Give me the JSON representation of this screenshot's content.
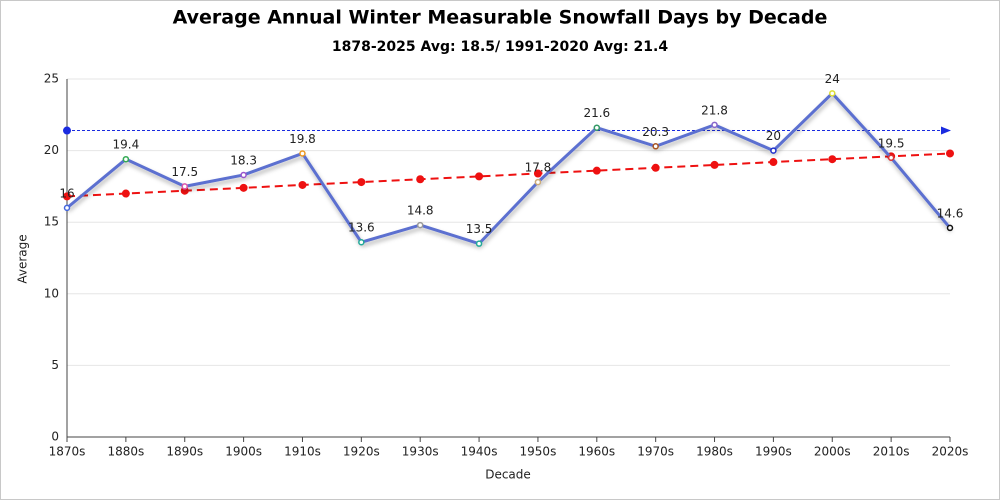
{
  "chart_data": {
    "type": "line",
    "title": "Average Annual Winter Measurable Snowfall Days by Decade",
    "subtitle": "1878-2025 Avg: 18.5/ 1991-2020 Avg: 21.4",
    "x_label": "Decade",
    "y_label": "Average",
    "categories": [
      "1870s",
      "1880s",
      "1890s",
      "1900s",
      "1910s",
      "1920s",
      "1930s",
      "1940s",
      "1950s",
      "1960s",
      "1970s",
      "1980s",
      "1990s",
      "2000s",
      "2010s",
      "2020s"
    ],
    "series": [
      {
        "color": "#5b6fd0",
        "values": [
          16,
          19.4,
          17.5,
          18.3,
          19.8,
          13.6,
          14.8,
          13.5,
          17.8,
          21.6,
          20.3,
          21.8,
          20,
          24,
          19.5,
          14.6
        ],
        "marker_colors": [
          "#4466dd",
          "#33aa55",
          "#dd55aa",
          "#9955cc",
          "#ee9922",
          "#22aa99",
          "#999999",
          "#22aa99",
          "#ccaa77",
          "#339966",
          "#aa5522",
          "#8866cc",
          "#2233cc",
          "#dddd33",
          "#dd3333",
          "#111111"
        ]
      },
      {
        "color": "#ee1111",
        "dashed": true,
        "values": [
          16.8,
          17.0,
          17.2,
          17.4,
          17.6,
          17.8,
          18.0,
          18.2,
          18.4,
          18.6,
          18.8,
          19.0,
          19.2,
          19.4,
          19.6,
          19.8
        ]
      }
    ],
    "reference_line": {
      "value": 21.4,
      "color": "#1a2be0"
    },
    "ylim": [
      0,
      25
    ],
    "yticks": [
      0,
      5,
      10,
      15,
      20,
      25
    ],
    "grid": true
  }
}
